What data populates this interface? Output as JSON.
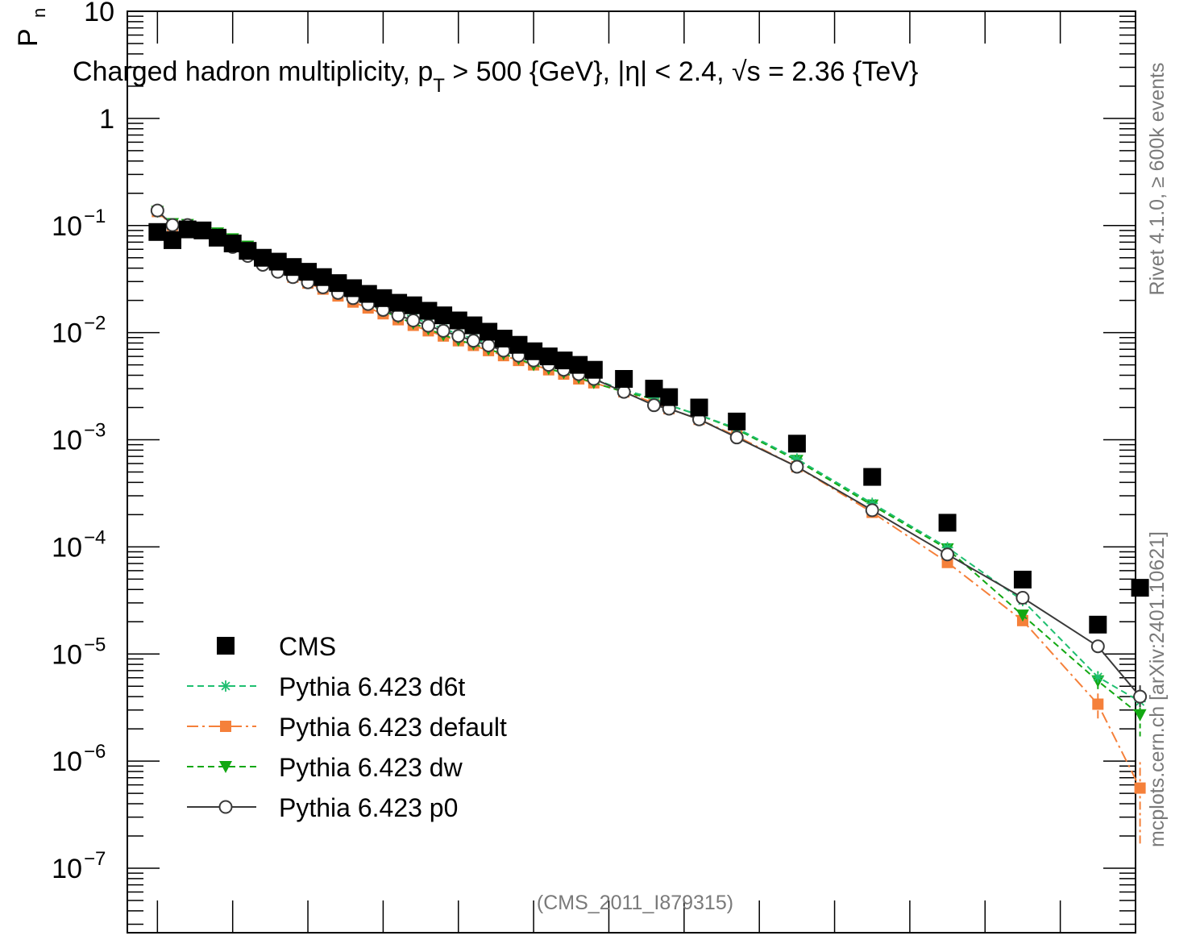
{
  "chart_data": {
    "type": "scatter",
    "title": "Charged hadron multiplicity, p_T > 500 {GeV}, |η| < 2.4, √s = 2.36 {TeV}",
    "title_parts": {
      "a": "Charged hadron multiplicity, p",
      "a_sub": "T",
      "b": " > 500 {GeV}, |η| < 2.4, ",
      "sqrt": "√",
      "c": "s = 2.36 {TeV}"
    },
    "ylabel": "P",
    "ylabel_sub": "n",
    "xlabel": "",
    "y_scale": "log",
    "ylim": [
      2.5e-08,
      10
    ],
    "xlim": [
      -1,
      66
    ],
    "y_ticks": [
      {
        "value": 10,
        "label": "10",
        "exp": ""
      },
      {
        "value": 1,
        "label": "1",
        "exp": ""
      },
      {
        "value": 0.1,
        "label": "10",
        "exp": "−1"
      },
      {
        "value": 0.01,
        "label": "10",
        "exp": "−2"
      },
      {
        "value": 0.001,
        "label": "10",
        "exp": "−3"
      },
      {
        "value": 0.0001,
        "label": "10",
        "exp": "−4"
      },
      {
        "value": 1e-05,
        "label": "10",
        "exp": "−5"
      },
      {
        "value": 1e-06,
        "label": "10",
        "exp": "−6"
      },
      {
        "value": 1e-07,
        "label": "10",
        "exp": "−7"
      }
    ],
    "x_ticks": [
      1,
      6,
      11,
      16,
      21,
      26,
      31,
      36,
      41,
      46,
      51,
      56,
      61,
      66
    ],
    "legend_position": "bottom-left",
    "analysis_label": "(CMS_2011_I879315)",
    "side_label_top": "Rivet 4.1.0, ≥ 600k events",
    "side_label_bottom": "mcplots.cern.ch [arXiv:2401.10621]",
    "series": [
      {
        "name": "CMS",
        "style": "data",
        "color": "#000000",
        "points": [
          [
            1,
            0.087
          ],
          [
            2,
            0.073
          ],
          [
            3,
            0.092
          ],
          [
            4,
            0.09
          ],
          [
            5,
            0.077
          ],
          [
            6,
            0.068
          ],
          [
            7,
            0.058
          ],
          [
            8,
            0.05
          ],
          [
            9,
            0.046
          ],
          [
            10,
            0.041
          ],
          [
            11,
            0.037
          ],
          [
            12,
            0.033
          ],
          [
            13,
            0.029
          ],
          [
            14,
            0.026
          ],
          [
            15,
            0.023
          ],
          [
            16,
            0.021
          ],
          [
            17,
            0.019
          ],
          [
            18,
            0.018
          ],
          [
            19,
            0.016
          ],
          [
            20,
            0.0145
          ],
          [
            21,
            0.013
          ],
          [
            22,
            0.0117
          ],
          [
            23,
            0.0102
          ],
          [
            24,
            0.0088
          ],
          [
            25,
            0.0077
          ],
          [
            26,
            0.0067
          ],
          [
            27,
            0.006
          ],
          [
            28,
            0.0055
          ],
          [
            29,
            0.005
          ],
          [
            30,
            0.0045
          ],
          [
            32,
            0.0037
          ],
          [
            34,
            0.003
          ],
          [
            35,
            0.0025
          ],
          [
            37,
            0.002
          ],
          [
            39.5,
            0.00148
          ],
          [
            43.5,
            0.00092
          ],
          [
            48.5,
            0.00045
          ],
          [
            53.5,
            0.000168
          ],
          [
            58.5,
            4.95e-05
          ],
          [
            63.5,
            1.88e-05
          ],
          [
            66.3,
            4.15e-05
          ]
        ]
      },
      {
        "name": "Pythia 6.423 d6t",
        "style": "star",
        "color": "#1fbf70",
        "points": [
          [
            1,
            0.135
          ],
          [
            2,
            0.104
          ],
          [
            3,
            0.101
          ],
          [
            4,
            0.094
          ],
          [
            5,
            0.083
          ],
          [
            6,
            0.073
          ],
          [
            7,
            0.062
          ],
          [
            8,
            0.052
          ],
          [
            9,
            0.044
          ],
          [
            10,
            0.037
          ],
          [
            11,
            0.032
          ],
          [
            12,
            0.028
          ],
          [
            13,
            0.025
          ],
          [
            14,
            0.0225
          ],
          [
            15,
            0.0198
          ],
          [
            16,
            0.0175
          ],
          [
            17,
            0.0155
          ],
          [
            18,
            0.0138
          ],
          [
            19,
            0.0122
          ],
          [
            20,
            0.0109
          ],
          [
            21,
            0.0097
          ],
          [
            22,
            0.0088
          ],
          [
            23,
            0.0079
          ],
          [
            24,
            0.0071
          ],
          [
            25,
            0.0064
          ],
          [
            26,
            0.0057
          ],
          [
            27,
            0.0051
          ],
          [
            28,
            0.0046
          ],
          [
            29,
            0.0042
          ],
          [
            30,
            0.0037
          ],
          [
            32,
            0.0029
          ],
          [
            34,
            0.00245
          ],
          [
            35,
            0.0021
          ],
          [
            37,
            0.0017
          ],
          [
            39.5,
            0.00128
          ],
          [
            43.5,
            0.00066
          ],
          [
            48.5,
            0.000255
          ],
          [
            53.5,
            9.85e-05
          ],
          [
            58.5,
            3.15e-05
          ],
          [
            63.5,
            6.1e-06
          ],
          [
            66.3,
            3.6e-06
          ]
        ]
      },
      {
        "name": "Pythia 6.423 default",
        "style": "square",
        "color": "#f5803a",
        "points": [
          [
            1,
            0.135
          ],
          [
            2,
            0.1
          ],
          [
            3,
            0.098
          ],
          [
            4,
            0.092
          ],
          [
            5,
            0.081
          ],
          [
            6,
            0.07
          ],
          [
            7,
            0.059
          ],
          [
            8,
            0.049
          ],
          [
            9,
            0.04
          ],
          [
            10,
            0.033
          ],
          [
            11,
            0.029
          ],
          [
            12,
            0.0255
          ],
          [
            13,
            0.022
          ],
          [
            14,
            0.0193
          ],
          [
            15,
            0.017
          ],
          [
            16,
            0.015
          ],
          [
            17,
            0.0132
          ],
          [
            18,
            0.0117
          ],
          [
            19,
            0.0104
          ],
          [
            20,
            0.0093
          ],
          [
            21,
            0.0084
          ],
          [
            22,
            0.0076
          ],
          [
            23,
            0.0068
          ],
          [
            24,
            0.0061
          ],
          [
            25,
            0.0055
          ],
          [
            26,
            0.005
          ],
          [
            27,
            0.0045
          ],
          [
            28,
            0.0041
          ],
          [
            29,
            0.0037
          ],
          [
            30,
            0.0034
          ],
          [
            32,
            0.0028
          ],
          [
            34,
            0.0022
          ],
          [
            35,
            0.00195
          ],
          [
            37,
            0.00155
          ],
          [
            39.5,
            0.00108
          ],
          [
            43.5,
            0.00056
          ],
          [
            48.5,
            0.00021
          ],
          [
            53.5,
            7.15e-05
          ],
          [
            58.5,
            2.05e-05
          ],
          [
            63.5,
            3.4e-06
          ],
          [
            66.3,
            5.6e-07
          ]
        ]
      },
      {
        "name": "Pythia 6.423 dw",
        "style": "triangle",
        "color": "#13a813",
        "points": [
          [
            1,
            0.135
          ],
          [
            2,
            0.104
          ],
          [
            3,
            0.102
          ],
          [
            4,
            0.095
          ],
          [
            5,
            0.085
          ],
          [
            6,
            0.075
          ],
          [
            7,
            0.064
          ],
          [
            8,
            0.053
          ],
          [
            9,
            0.045
          ],
          [
            10,
            0.038
          ],
          [
            11,
            0.032
          ],
          [
            12,
            0.0278
          ],
          [
            13,
            0.024
          ],
          [
            14,
            0.021
          ],
          [
            15,
            0.0183
          ],
          [
            16,
            0.016
          ],
          [
            17,
            0.0139
          ],
          [
            18,
            0.0122
          ],
          [
            19,
            0.0108
          ],
          [
            20,
            0.0095
          ],
          [
            21,
            0.0085
          ],
          [
            22,
            0.0078
          ],
          [
            23,
            0.007
          ],
          [
            24,
            0.0063
          ],
          [
            25,
            0.0057
          ],
          [
            26,
            0.005
          ],
          [
            27,
            0.0046
          ],
          [
            28,
            0.0042
          ],
          [
            29,
            0.0038
          ],
          [
            30,
            0.0034
          ],
          [
            32,
            0.0028
          ],
          [
            34,
            0.0024
          ],
          [
            35,
            0.0021
          ],
          [
            37,
            0.0017
          ],
          [
            39.5,
            0.00125
          ],
          [
            43.5,
            0.00064
          ],
          [
            48.5,
            0.000245
          ],
          [
            53.5,
            9.55e-05
          ],
          [
            58.5,
            2.3e-05
          ],
          [
            63.5,
            5.6e-06
          ],
          [
            66.3,
            2.7e-06
          ]
        ]
      },
      {
        "name": "Pythia 6.423 p0",
        "style": "circle",
        "color": "#3a3a3a",
        "points": [
          [
            1,
            0.138
          ],
          [
            2,
            0.101
          ],
          [
            3,
            0.101
          ],
          [
            4,
            0.093
          ],
          [
            5,
            0.077
          ],
          [
            6,
            0.063
          ],
          [
            7,
            0.052
          ],
          [
            8,
            0.043
          ],
          [
            9,
            0.037
          ],
          [
            10,
            0.033
          ],
          [
            11,
            0.0295
          ],
          [
            12,
            0.0265
          ],
          [
            13,
            0.0235
          ],
          [
            14,
            0.021
          ],
          [
            15,
            0.0185
          ],
          [
            16,
            0.0163
          ],
          [
            17,
            0.0145
          ],
          [
            18,
            0.013
          ],
          [
            19,
            0.0116
          ],
          [
            20,
            0.0104
          ],
          [
            21,
            0.0093
          ],
          [
            22,
            0.0084
          ],
          [
            23,
            0.0076
          ],
          [
            24,
            0.0068
          ],
          [
            25,
            0.0061
          ],
          [
            26,
            0.0055
          ],
          [
            27,
            0.005
          ],
          [
            28,
            0.0045
          ],
          [
            29,
            0.0041
          ],
          [
            30,
            0.0037
          ],
          [
            32,
            0.0028
          ],
          [
            34,
            0.0021
          ],
          [
            35,
            0.00195
          ],
          [
            37,
            0.00155
          ],
          [
            39.5,
            0.00105
          ],
          [
            43.5,
            0.00056
          ],
          [
            48.5,
            0.00022
          ],
          [
            53.5,
            8.5e-05
          ],
          [
            58.5,
            3.35e-05
          ],
          [
            63.5,
            1.18e-05
          ],
          [
            66.3,
            4e-06
          ]
        ]
      }
    ],
    "error_bars": {
      "Pythia 6.423 default": {
        "66.3": [
          1.7e-07,
          9.8e-07
        ],
        "63.5": [
          2.5e-06,
          4.5e-06
        ]
      },
      "Pythia 6.423 dw": {
        "66.3": [
          1.7e-06,
          3.7e-06
        ],
        "63.5": [
          4.7e-06,
          6.9e-06
        ]
      },
      "Pythia 6.423 p0": {
        "66.3": [
          3.2e-06,
          5.1e-06
        ]
      }
    }
  }
}
